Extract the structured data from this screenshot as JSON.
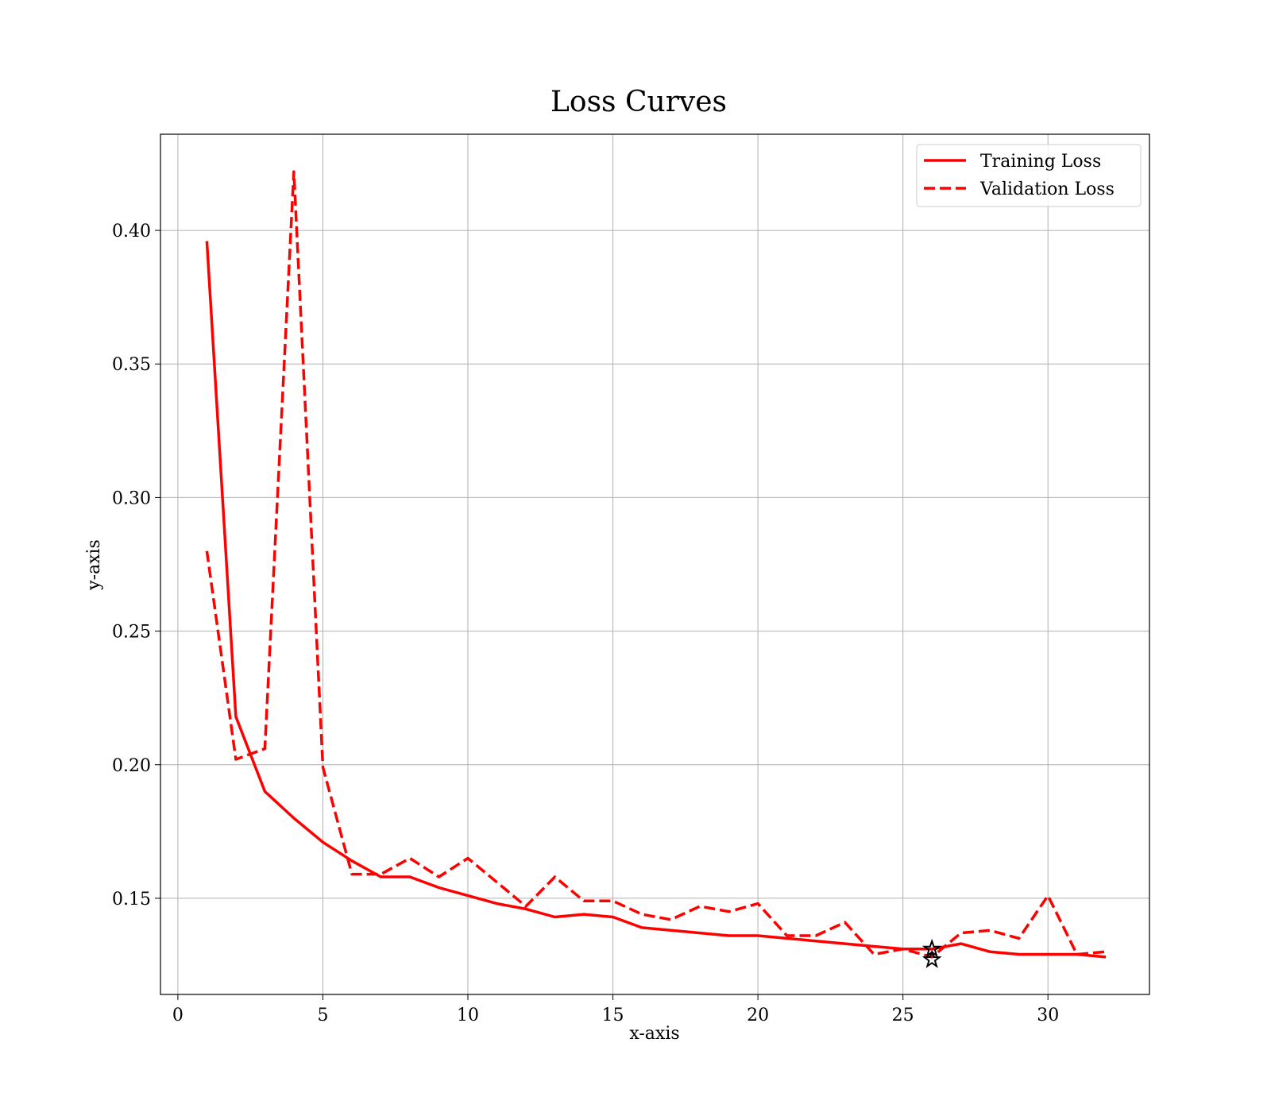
{
  "chart_data": {
    "type": "line",
    "title": "Loss Curves",
    "xlabel": "x-axis",
    "ylabel": "y-axis",
    "xlim": [
      -0.6,
      33.5
    ],
    "ylim": [
      0.114,
      0.436
    ],
    "xticks": [
      0,
      5,
      10,
      15,
      20,
      25,
      30
    ],
    "xtick_labels": [
      "0",
      "5",
      "10",
      "15",
      "20",
      "25",
      "30"
    ],
    "yticks": [
      0.15,
      0.2,
      0.25,
      0.3,
      0.35,
      0.4
    ],
    "ytick_labels": [
      "0.15",
      "0.20",
      "0.25",
      "0.30",
      "0.35",
      "0.40"
    ],
    "grid": true,
    "legend_position": "top-right",
    "x": [
      1,
      2,
      3,
      4,
      5,
      6,
      7,
      8,
      9,
      10,
      11,
      12,
      13,
      14,
      15,
      16,
      17,
      18,
      19,
      20,
      21,
      22,
      23,
      24,
      25,
      26,
      27,
      28,
      29,
      30,
      31,
      32
    ],
    "series": [
      {
        "name": "Training Loss",
        "style": "solid",
        "color": "#ff0000",
        "values": [
          0.396,
          0.218,
          0.19,
          0.18,
          0.171,
          0.164,
          0.158,
          0.158,
          0.154,
          0.151,
          0.148,
          0.146,
          0.143,
          0.144,
          0.143,
          0.139,
          0.138,
          0.137,
          0.136,
          0.136,
          0.135,
          0.134,
          0.133,
          0.132,
          0.131,
          0.131,
          0.133,
          0.13,
          0.129,
          0.129,
          0.129,
          0.128
        ]
      },
      {
        "name": "Validation Loss",
        "style": "dashed",
        "color": "#ff0000",
        "values": [
          0.28,
          0.202,
          0.206,
          0.422,
          0.199,
          0.159,
          0.159,
          0.165,
          0.158,
          0.165,
          0.156,
          0.147,
          0.158,
          0.149,
          0.149,
          0.144,
          0.142,
          0.147,
          0.145,
          0.148,
          0.136,
          0.136,
          0.141,
          0.129,
          0.131,
          0.128,
          0.137,
          0.138,
          0.135,
          0.151,
          0.129,
          0.13
        ]
      }
    ],
    "markers": [
      {
        "x": 26,
        "y": 0.131,
        "symbol": "star",
        "color": "#000000"
      },
      {
        "x": 26,
        "y": 0.127,
        "symbol": "star",
        "color": "#000000"
      }
    ]
  }
}
